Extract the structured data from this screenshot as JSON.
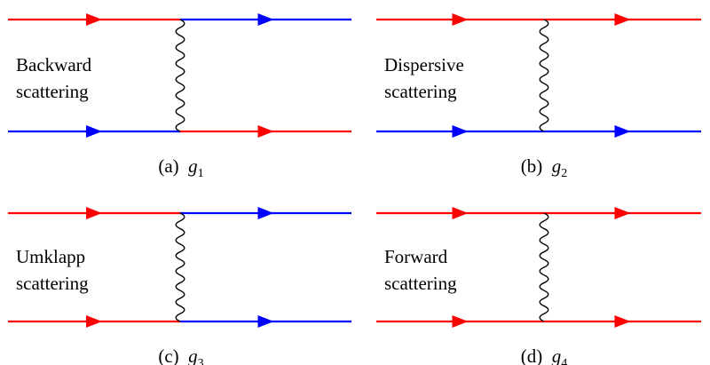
{
  "colors": {
    "red": "#ff0000",
    "blue": "#0000ff",
    "photon": "#000000"
  },
  "panels": [
    {
      "label_lines": [
        "Backward",
        "scattering"
      ],
      "caption": {
        "prefix": "(a)",
        "symbol": "g",
        "subscript": "1"
      },
      "top_line": [
        "red",
        "blue"
      ],
      "bottom_line": [
        "blue",
        "red"
      ]
    },
    {
      "label_lines": [
        "Dispersive",
        "scattering"
      ],
      "caption": {
        "prefix": "(b)",
        "symbol": "g",
        "subscript": "2"
      },
      "top_line": [
        "red",
        "red"
      ],
      "bottom_line": [
        "blue",
        "blue"
      ]
    },
    {
      "label_lines": [
        "Umklapp",
        "scattering"
      ],
      "caption": {
        "prefix": "(c)",
        "symbol": "g",
        "subscript": "3"
      },
      "top_line": [
        "red",
        "blue"
      ],
      "bottom_line": [
        "red",
        "blue"
      ]
    },
    {
      "label_lines": [
        "Forward",
        "scattering"
      ],
      "caption": {
        "prefix": "(d)",
        "symbol": "g",
        "subscript": "4"
      },
      "top_line": [
        "red",
        "red"
      ],
      "bottom_line": [
        "red",
        "red"
      ]
    }
  ]
}
